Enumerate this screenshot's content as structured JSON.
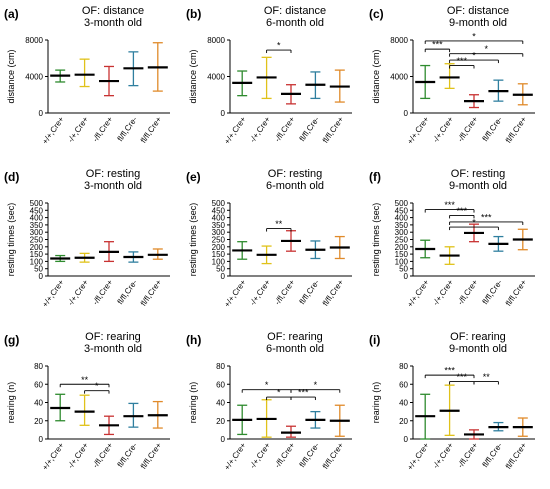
{
  "colors": [
    "#2e8b2e",
    "#e0c21a",
    "#c83232",
    "#2f7f9f",
    "#e08a2a"
  ],
  "chart_data": [
    {
      "type": "errorbar",
      "panel": "(a)",
      "title": [
        "OF: distance",
        "3-month old"
      ],
      "ylabel": "distance (cm)",
      "yticks": [
        0,
        4000,
        8000
      ],
      "ylim": [
        0,
        8000
      ],
      "categories": [
        "+/+,Cre+",
        "-/+,Cre+",
        "-/fl,Cre+",
        "fl/fl,Cre-",
        "fl/fl,Cre+"
      ],
      "mean": [
        4100,
        4200,
        3500,
        4900,
        5000
      ],
      "sd_low": [
        3400,
        2900,
        1900,
        3000,
        2400
      ],
      "sd_high": [
        4700,
        5900,
        5100,
        6700,
        7700
      ],
      "significance": []
    },
    {
      "type": "errorbar",
      "panel": "(b)",
      "title": [
        "OF: distance",
        "6-month old"
      ],
      "ylabel": "distance (cm)",
      "yticks": [
        0,
        4000,
        8000
      ],
      "ylim": [
        0,
        8000
      ],
      "categories": [
        "+/+,Cre+",
        "-/+,Cre+",
        "-/fl,Cre+",
        "fl/fl,Cre-",
        "fl/fl,Cre+"
      ],
      "mean": [
        3300,
        3900,
        2100,
        3100,
        2900
      ],
      "sd_low": [
        1900,
        1600,
        1000,
        1600,
        1200
      ],
      "sd_high": [
        4600,
        6100,
        3100,
        4500,
        4700
      ],
      "significance": [
        {
          "from": 1,
          "to": 2,
          "label": "*",
          "level": 6900
        }
      ]
    },
    {
      "type": "errorbar",
      "panel": "(c)",
      "title": [
        "OF: distance",
        "9-month old"
      ],
      "ylabel": "distance (cm)",
      "yticks": [
        0,
        4000,
        8000
      ],
      "ylim": [
        0,
        8000
      ],
      "categories": [
        "+/+,Cre+",
        "-/+,Cre+",
        "-/fl,Cre+",
        "fl/fl,Cre-",
        "fl/fl,Cre+"
      ],
      "mean": [
        3400,
        3900,
        1300,
        2400,
        2000
      ],
      "sd_low": [
        1600,
        2700,
        600,
        1300,
        900
      ],
      "sd_high": [
        5200,
        5400,
        2000,
        3600,
        3200
      ],
      "significance": [
        {
          "from": 0,
          "to": 4,
          "label": "*",
          "level": 7900
        },
        {
          "from": 0,
          "to": 1,
          "label": "***",
          "level": 7000
        },
        {
          "from": 1,
          "to": 4,
          "label": "*",
          "level": 6500
        },
        {
          "from": 1,
          "to": 3,
          "label": "*",
          "level": 5800
        },
        {
          "from": 1,
          "to": 2,
          "label": "***",
          "level": 5200
        }
      ]
    },
    {
      "type": "errorbar",
      "panel": "(d)",
      "title": [
        "OF: resting",
        "3-month old"
      ],
      "ylabel": "resting times (sec)",
      "yticks": [
        0,
        50,
        100,
        150,
        200,
        250,
        300,
        350,
        400,
        450,
        500
      ],
      "ylim": [
        0,
        500
      ],
      "categories": [
        "+/+,Cre+",
        "-/+,Cre+",
        "-/fl,Cre+",
        "fl/fl,Cre-",
        "fl/fl,Cre+"
      ],
      "mean": [
        120,
        125,
        165,
        130,
        145
      ],
      "sd_low": [
        100,
        95,
        100,
        95,
        115
      ],
      "sd_high": [
        140,
        155,
        235,
        165,
        185
      ],
      "significance": []
    },
    {
      "type": "errorbar",
      "panel": "(e)",
      "title": [
        "OF: resting",
        "6-month old"
      ],
      "ylabel": "resting times (sec)",
      "yticks": [
        0,
        50,
        100,
        150,
        200,
        250,
        300,
        350,
        400,
        450,
        500
      ],
      "ylim": [
        0,
        500
      ],
      "categories": [
        "+/+,Cre+",
        "-/+,Cre+",
        "-/fl,Cre+",
        "fl/fl,Cre-",
        "fl/fl,Cre+"
      ],
      "mean": [
        175,
        145,
        240,
        180,
        195
      ],
      "sd_low": [
        115,
        85,
        170,
        120,
        120
      ],
      "sd_high": [
        235,
        205,
        310,
        240,
        270
      ],
      "significance": [
        {
          "from": 1,
          "to": 2,
          "label": "**",
          "level": 325
        }
      ]
    },
    {
      "type": "errorbar",
      "panel": "(f)",
      "title": [
        "OF: resting",
        "9-month old"
      ],
      "ylabel": "resting times (sec)",
      "yticks": [
        0,
        50,
        100,
        150,
        200,
        250,
        300,
        350,
        400,
        450,
        500
      ],
      "ylim": [
        0,
        500
      ],
      "categories": [
        "+/+,Cre+",
        "-/+,Cre+",
        "-/fl,Cre+",
        "fl/fl,Cre-",
        "fl/fl,Cre+"
      ],
      "mean": [
        185,
        140,
        295,
        220,
        250
      ],
      "sd_low": [
        125,
        80,
        235,
        170,
        180
      ],
      "sd_high": [
        245,
        200,
        355,
        270,
        320
      ],
      "significance": [
        {
          "from": 0,
          "to": 2,
          "label": "***",
          "level": 455
        },
        {
          "from": 1,
          "to": 2,
          "label": "***",
          "level": 415
        },
        {
          "from": 1,
          "to": 4,
          "label": "***",
          "level": 370
        },
        {
          "from": 1,
          "to": 3,
          "label": "*",
          "level": 335
        }
      ]
    },
    {
      "type": "errorbar",
      "panel": "(g)",
      "title": [
        "OF: rearing",
        "3-month old"
      ],
      "ylabel": "rearing (n)",
      "yticks": [
        0,
        20,
        40,
        60,
        80
      ],
      "ylim": [
        0,
        80
      ],
      "categories": [
        "+/+,Cre+",
        "-/+,Cre+",
        "-/fl,Cre+",
        "fl/fl,Cre-",
        "fl/fl,Cre+"
      ],
      "mean": [
        34,
        30,
        15,
        25,
        26
      ],
      "sd_low": [
        20,
        15,
        5,
        13,
        12
      ],
      "sd_high": [
        49,
        48,
        25,
        39,
        41
      ],
      "significance": [
        {
          "from": 0,
          "to": 2,
          "label": "**",
          "level": 60
        },
        {
          "from": 1,
          "to": 2,
          "label": "*",
          "level": 53
        }
      ]
    },
    {
      "type": "errorbar",
      "panel": "(h)",
      "title": [
        "OF: rearing",
        "6-month old"
      ],
      "ylabel": "rearing (n)",
      "yticks": [
        0,
        20,
        40,
        60,
        80
      ],
      "ylim": [
        0,
        80
      ],
      "categories": [
        "+/+,Cre+",
        "-/+,Cre+",
        "-/fl,Cre+",
        "fl/fl,Cre-",
        "fl/fl,Cre+"
      ],
      "mean": [
        21,
        22,
        7,
        21,
        20
      ],
      "sd_low": [
        5,
        2,
        2,
        12,
        3
      ],
      "sd_high": [
        37,
        43,
        14,
        30,
        37
      ],
      "significance": [
        {
          "from": 0,
          "to": 2,
          "label": "*",
          "level": 54
        },
        {
          "from": 2,
          "to": 4,
          "label": "*",
          "level": 54
        },
        {
          "from": 1,
          "to": 2,
          "label": "*",
          "level": 46
        },
        {
          "from": 2,
          "to": 3,
          "label": "***",
          "level": 46
        }
      ]
    },
    {
      "type": "errorbar",
      "panel": "(i)",
      "title": [
        "OF: rearing",
        "9-month old"
      ],
      "ylabel": "rearing (n)",
      "yticks": [
        0,
        20,
        40,
        60,
        80
      ],
      "ylim": [
        0,
        80
      ],
      "categories": [
        "+/+,Cre+",
        "-/+,Cre+",
        "-/fl,Cre+",
        "fl/fl,Cre-",
        "fl/fl,Cre+"
      ],
      "mean": [
        25,
        31,
        5,
        13,
        13
      ],
      "sd_low": [
        0,
        4,
        0,
        9,
        3
      ],
      "sd_high": [
        49,
        59,
        10,
        18,
        23
      ],
      "significance": [
        {
          "from": 0,
          "to": 2,
          "label": "***",
          "level": 70
        },
        {
          "from": 1,
          "to": 2,
          "label": "***",
          "level": 63
        },
        {
          "from": 2,
          "to": 3,
          "label": "**",
          "level": 63
        }
      ]
    }
  ]
}
